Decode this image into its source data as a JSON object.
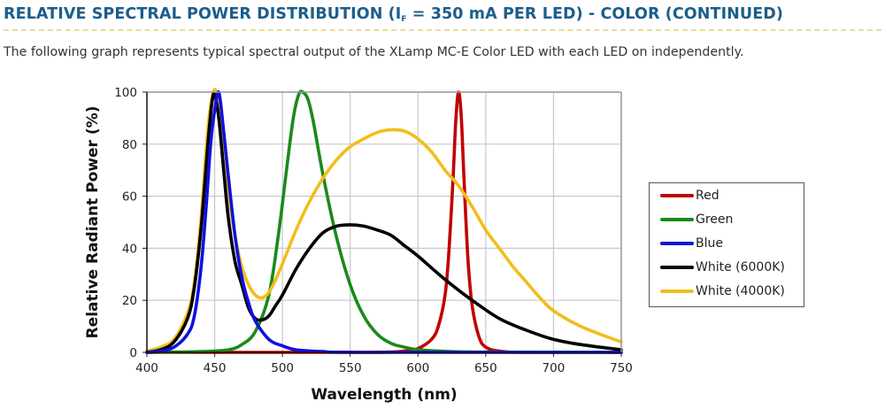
{
  "header": {
    "title_pre": "RELATIVE SPECTRAL POWER DISTRIBUTION (I",
    "title_sub": "F",
    "title_post": " = 350 mA PER LED) - COLOR (CONTINUED)",
    "intro": "The following graph represents typical spectral output of the XLamp MC-E Color LED with each LED on independently."
  },
  "colors": {
    "title": "#1b5e8c",
    "red": "#c00000",
    "green": "#1a8a1a",
    "blue": "#1010e0",
    "white6000": "#000000",
    "white4000": "#f2bd1b"
  },
  "chart_data": {
    "type": "line",
    "title": "",
    "xlabel": "Wavelength (nm)",
    "ylabel": "Relative Radiant Power (%)",
    "xlim": [
      400,
      750
    ],
    "ylim": [
      0,
      100
    ],
    "xticks": [
      "400",
      "450",
      "500",
      "550",
      "600",
      "650",
      "700",
      "750"
    ],
    "yticks": [
      "0",
      "20",
      "40",
      "60",
      "80",
      "100"
    ],
    "grid": true,
    "legend_position": "right",
    "series": [
      {
        "name": "Red",
        "color": "#c00000",
        "x": [
          400,
          560,
          590,
          600,
          610,
          615,
          620,
          623,
          626,
          628,
          630,
          632,
          634,
          637,
          640,
          645,
          650,
          660,
          680,
          750
        ],
        "y": [
          0,
          0,
          0.5,
          1.5,
          5,
          10,
          22,
          40,
          68,
          90,
          100,
          90,
          66,
          35,
          18,
          6,
          2,
          0.5,
          0,
          0
        ]
      },
      {
        "name": "Green",
        "color": "#1a8a1a",
        "x": [
          400,
          440,
          460,
          470,
          480,
          490,
          497,
          503,
          508,
          512,
          515,
          519,
          523,
          530,
          540,
          550,
          560,
          570,
          580,
          590,
          600,
          620,
          650,
          750
        ],
        "y": [
          0,
          0.3,
          1,
          3,
          8,
          22,
          45,
          70,
          90,
          99,
          100,
          97,
          88,
          68,
          44,
          26,
          14,
          7,
          3.5,
          2,
          1,
          0.4,
          0.1,
          0
        ]
      },
      {
        "name": "Blue",
        "color": "#1010e0",
        "x": [
          400,
          410,
          420,
          430,
          435,
          440,
          444,
          447,
          450,
          453,
          456,
          460,
          465,
          470,
          475,
          480,
          490,
          500,
          510,
          530,
          560,
          750
        ],
        "y": [
          0,
          0.5,
          2,
          7,
          14,
          33,
          58,
          80,
          93,
          100,
          88,
          68,
          45,
          29,
          19,
          12,
          5,
          2.5,
          1,
          0.3,
          0,
          0
        ]
      },
      {
        "name": "White (6000K)",
        "color": "#000000",
        "x": [
          400,
          410,
          420,
          430,
          435,
          440,
          445,
          448,
          450,
          453,
          457,
          460,
          465,
          470,
          475,
          480,
          485,
          490,
          495,
          500,
          510,
          520,
          530,
          540,
          550,
          560,
          570,
          580,
          590,
          600,
          620,
          640,
          660,
          680,
          700,
          720,
          750
        ],
        "y": [
          0,
          1,
          4,
          13,
          25,
          48,
          80,
          96,
          99,
          90,
          68,
          52,
          35,
          26,
          17,
          13,
          12.5,
          14,
          18,
          22,
          32,
          40,
          46,
          48.5,
          49,
          48.5,
          47,
          45,
          41,
          37,
          28,
          20,
          13,
          8.5,
          5,
          3,
          1
        ]
      },
      {
        "name": "White (4000K)",
        "color": "#f2bd1b",
        "x": [
          400,
          410,
          420,
          430,
          435,
          440,
          445,
          449,
          452,
          456,
          460,
          465,
          470,
          475,
          480,
          485,
          490,
          495,
          500,
          510,
          520,
          530,
          540,
          550,
          560,
          570,
          580,
          590,
          600,
          610,
          620,
          630,
          640,
          650,
          660,
          670,
          680,
          690,
          700,
          720,
          750
        ],
        "y": [
          0.5,
          2,
          5,
          15,
          27,
          52,
          86,
          100,
          98,
          82,
          62,
          45,
          33,
          26,
          22,
          21,
          23,
          28,
          34,
          47,
          58,
          67,
          74,
          79,
          82,
          84.5,
          85.5,
          85,
          82,
          77,
          70,
          64,
          56,
          47,
          40,
          33,
          27,
          21,
          16,
          10,
          4
        ]
      }
    ]
  }
}
